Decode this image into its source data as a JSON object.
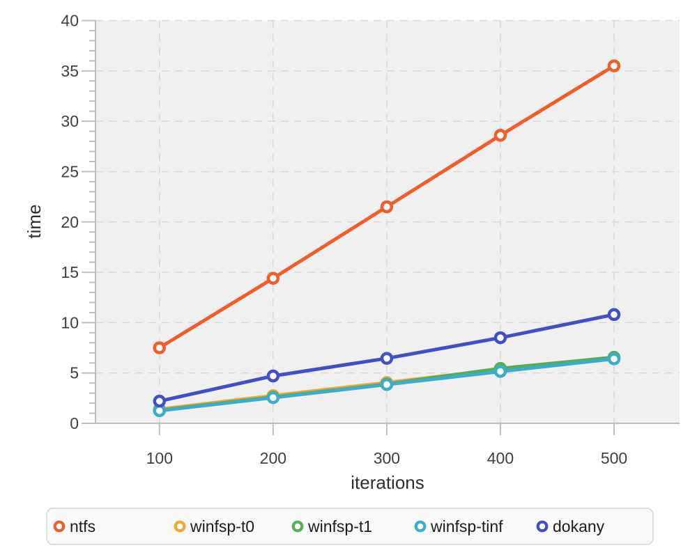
{
  "chart_data": {
    "type": "line",
    "x": [
      100,
      200,
      300,
      400,
      500
    ],
    "series": [
      {
        "name": "ntfs",
        "color": "#f15c2b",
        "values": [
          7.5,
          14.4,
          21.5,
          28.6,
          35.5
        ]
      },
      {
        "name": "winfsp-t0",
        "color": "#f3a72b",
        "values": [
          1.4,
          2.75,
          4.05,
          5.35,
          6.55
        ]
      },
      {
        "name": "winfsp-t1",
        "color": "#53ae57",
        "values": [
          1.3,
          2.6,
          3.9,
          5.45,
          6.55
        ]
      },
      {
        "name": "winfsp-tinf",
        "color": "#3cadc9",
        "values": [
          1.25,
          2.55,
          3.85,
          5.15,
          6.4
        ]
      },
      {
        "name": "dokany",
        "color": "#4250c4",
        "values": [
          2.2,
          4.7,
          6.45,
          8.5,
          10.8
        ]
      }
    ],
    "title": "",
    "xlabel": "iterations",
    "ylabel": "time",
    "xticks": [
      100,
      200,
      300,
      400,
      500
    ],
    "yticks": [
      0,
      5,
      10,
      15,
      20,
      25,
      30,
      35,
      40
    ],
    "ylim": [
      0,
      40
    ],
    "y_minor_tick_step": 1,
    "grid": "dashed",
    "legend_position": "bottom",
    "plot_background": "#f0f0f0",
    "gridline_color": "#d8d8d8",
    "axis_color": "#bdbdbd",
    "marker_style": "open-circle"
  }
}
